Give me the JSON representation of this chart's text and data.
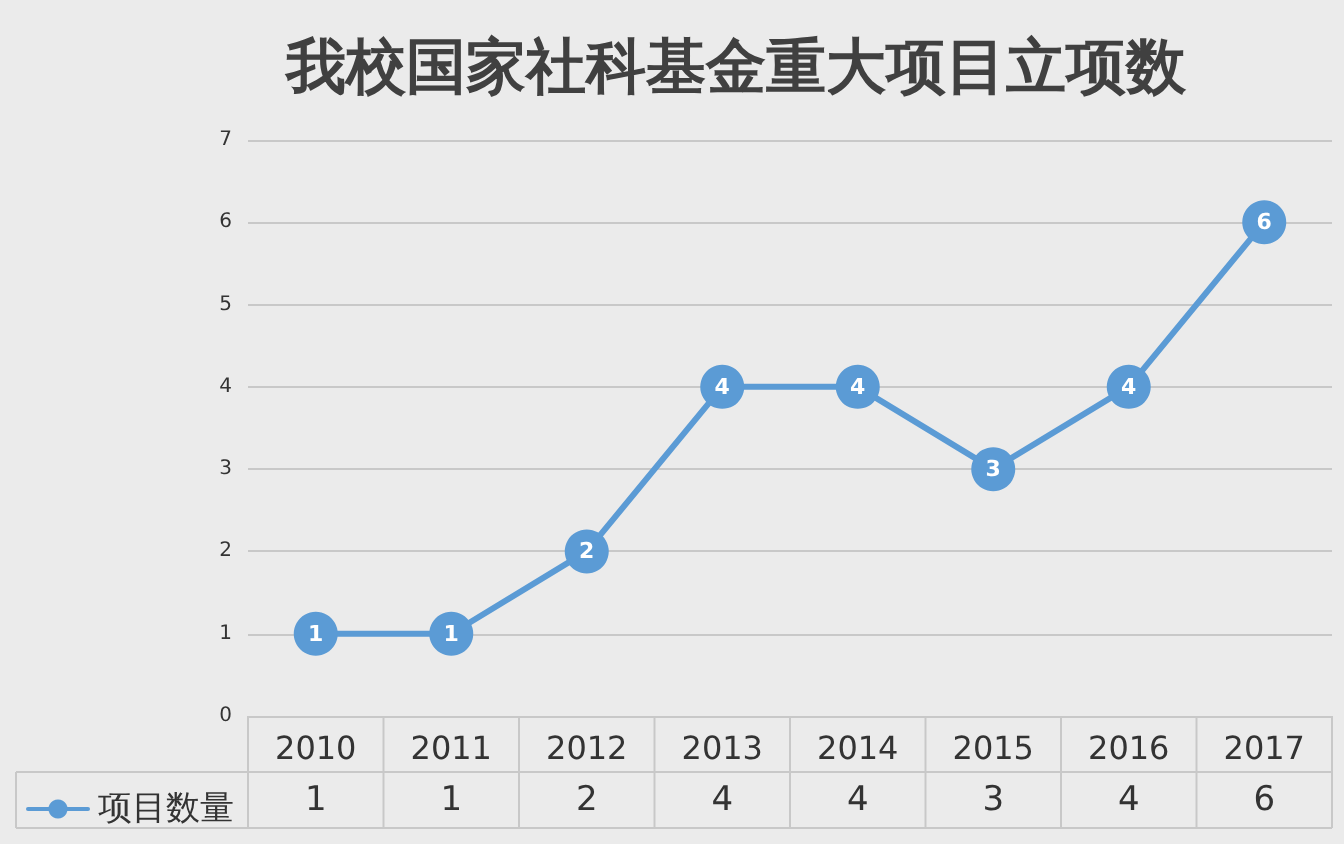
{
  "chart_data": {
    "type": "line",
    "title": "我校国家社科基金重大项目立项数",
    "categories": [
      "2010",
      "2011",
      "2012",
      "2013",
      "2014",
      "2015",
      "2016",
      "2017"
    ],
    "series": [
      {
        "name": "项目数量",
        "color": "#5b9bd5",
        "values": [
          1,
          1,
          2,
          4,
          4,
          3,
          4,
          6
        ]
      }
    ],
    "annotations": [
      {
        "text": "1",
        "x": "2010",
        "y": 1
      },
      {
        "text": "1",
        "x": "2011",
        "y": 1
      },
      {
        "text": "2",
        "x": "2012",
        "y": 2
      },
      {
        "text": "4",
        "x": "2013",
        "y": 4
      },
      {
        "text": "4",
        "x": "2014",
        "y": 4
      },
      {
        "text": "3",
        "x": "2015",
        "y": 3
      },
      {
        "text": "4",
        "x": "2016",
        "y": 4
      },
      {
        "text": "6",
        "x": "2017",
        "y": 6
      }
    ],
    "ylim": [
      0,
      7
    ],
    "yticks": [
      0,
      1,
      2,
      3,
      4,
      5,
      6,
      7
    ],
    "grid": "y",
    "legend": "bottom left",
    "data_labels": true,
    "marker": "circle",
    "line_style": "solid"
  }
}
